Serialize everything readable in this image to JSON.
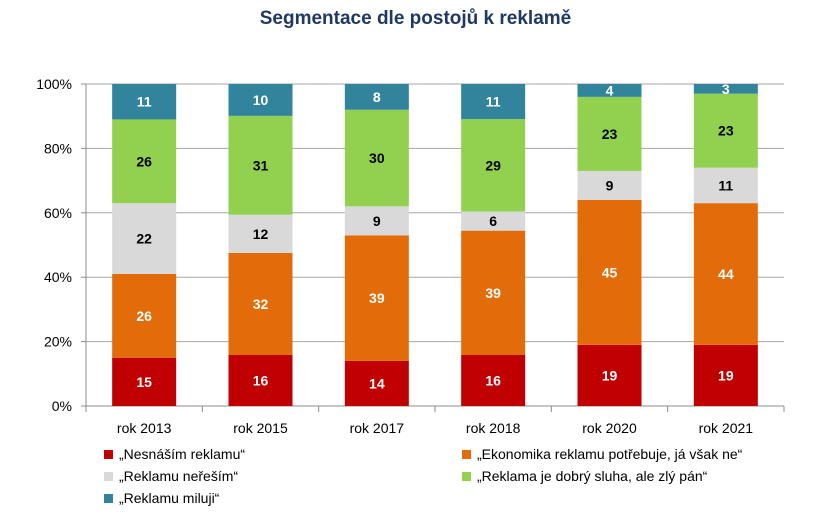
{
  "chart_data": {
    "type": "bar",
    "stacked": true,
    "title": "Segmentace dle postojů k reklamě",
    "categories": [
      "rok 2013",
      "rok 2015",
      "rok 2017",
      "rok 2018",
      "rok 2020",
      "rok 2021"
    ],
    "y_ticks": [
      "0%",
      "20%",
      "40%",
      "60%",
      "80%",
      "100%"
    ],
    "ylim": [
      0,
      100
    ],
    "grid": true,
    "legend_position": "bottom",
    "series": [
      {
        "name": "„Nesnáším reklamu“",
        "color": "#c00000",
        "label_color": "#ffffff",
        "values": [
          15,
          16,
          14,
          16,
          19,
          19
        ]
      },
      {
        "name": "„Ekonomika reklamu potřebuje, já však ne“",
        "color": "#e36c0a",
        "label_color": "#ffffff",
        "values": [
          26,
          32,
          39,
          39,
          45,
          44
        ]
      },
      {
        "name": "„Reklamu neřeším“",
        "color": "#d9d9d9",
        "label_color": "#000000",
        "values": [
          22,
          12,
          9,
          6,
          9,
          11
        ]
      },
      {
        "name": "„Reklama je dobrý sluha, ale zlý pán“",
        "color": "#92d050",
        "label_color": "#000000",
        "values": [
          26,
          31,
          30,
          29,
          23,
          23
        ]
      },
      {
        "name": "„Reklamu miluji“",
        "color": "#31849b",
        "label_color": "#ffffff",
        "values": [
          11,
          10,
          8,
          11,
          4,
          3
        ]
      }
    ]
  }
}
